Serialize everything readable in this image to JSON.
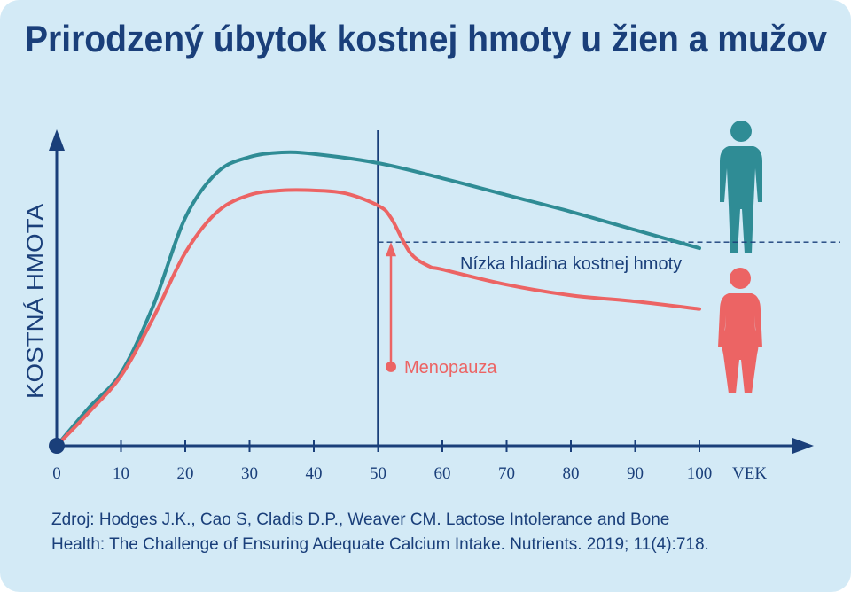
{
  "chart_data": {
    "type": "line",
    "title": "Prirodzený úbytok kostnej hmoty u žien a mužov",
    "x_label": "VEK",
    "y_label": "KOSTNÁ HMOTA",
    "xlim": [
      0,
      100
    ],
    "ylim": [
      0,
      100
    ],
    "xticks": [
      0,
      10,
      20,
      30,
      40,
      50,
      60,
      70,
      80,
      90,
      100
    ],
    "series": [
      {
        "color": "#2f8c95",
        "x": [
          0,
          5,
          10,
          15,
          20,
          25,
          30,
          35,
          40,
          50,
          60,
          70,
          80,
          90,
          100
        ],
        "values": [
          0,
          12.5,
          24,
          46,
          75,
          90,
          95,
          96.5,
          96,
          93,
          88,
          82.5,
          77,
          71,
          65
        ]
      },
      {
        "color": "#ec6464",
        "x": [
          0,
          5,
          10,
          15,
          20,
          25,
          30,
          35,
          40,
          45,
          50,
          52,
          55,
          58,
          60,
          70,
          80,
          90,
          100
        ],
        "values": [
          0,
          11,
          23,
          42,
          63.5,
          77,
          82.5,
          84,
          84,
          83,
          79,
          75,
          63.5,
          59,
          58,
          53,
          49.5,
          47.5,
          45
        ]
      }
    ],
    "vline": 50,
    "threshold": {
      "value": 67,
      "label": "Nízka hladina kostnej hmoty"
    },
    "menopause": {
      "x": 52,
      "from": 26,
      "label": "Menopauza"
    },
    "source": [
      "Zdroj: Hodges J.K., Cao S, Cladis D.P., Weaver CM. Lactose Intolerance and Bone",
      "Health: The Challenge of Ensuring Adequate Calcium Intake. Nutrients. 2019; 11(4):718."
    ]
  }
}
